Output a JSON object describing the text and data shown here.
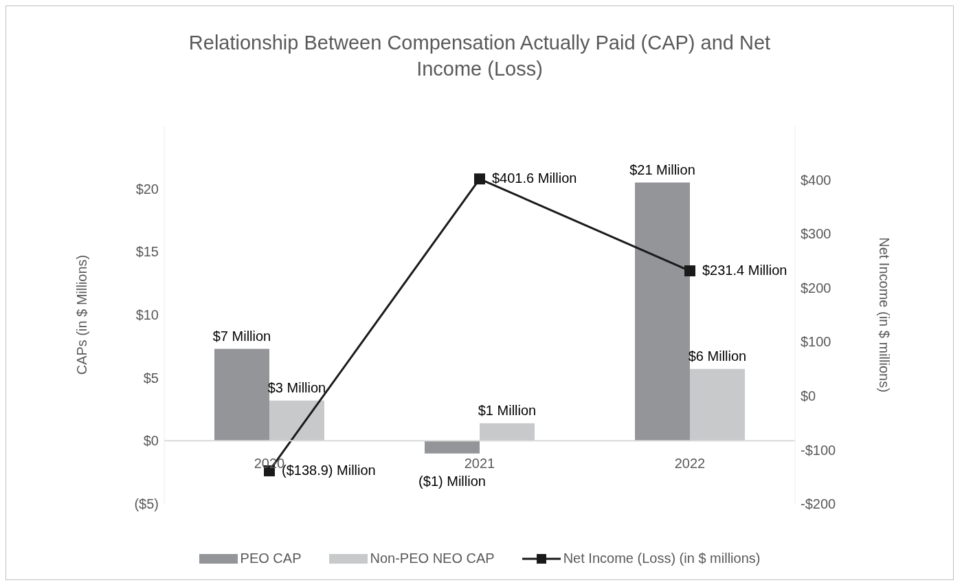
{
  "chart_data": {
    "type": "bar",
    "title": "Relationship Between Compensation Actually Paid (CAP) and Net Income (Loss)",
    "ylabel": "CAPs (in $ Millions)",
    "y2label": "Net Income (in $ millions)",
    "categories": [
      "2020",
      "2021",
      "2022"
    ],
    "series": [
      {
        "name": "PEO CAP",
        "color": "#939598",
        "values": [
          7.3,
          -1.0,
          20.5
        ],
        "value_labels": [
          "$7 Million",
          "($1) Million",
          "$21 Million"
        ]
      },
      {
        "name": "Non-PEO NEO CAP",
        "color": "#c8c9cb",
        "values": [
          3.2,
          1.4,
          5.7
        ],
        "value_labels": [
          "$3 Million",
          "$1 Million",
          "$6 Million"
        ]
      },
      {
        "name": "Net Income (Loss) (in $ millions)",
        "type": "line",
        "axis": "y2",
        "color": "#1a1a1a",
        "marker": "square",
        "line_style": "solid",
        "values": [
          -138.9,
          401.6,
          231.4
        ],
        "value_labels": [
          "($138.9) Million",
          "$401.6 Million",
          "$231.4 Million"
        ]
      }
    ],
    "ylim": [
      -5,
      25
    ],
    "yticks": [
      {
        "value": -5,
        "label": "($5)"
      },
      {
        "value": 0,
        "label": "$0"
      },
      {
        "value": 5,
        "label": "$5"
      },
      {
        "value": 10,
        "label": "$10"
      },
      {
        "value": 15,
        "label": "$15"
      },
      {
        "value": 20,
        "label": "$20"
      }
    ],
    "y2lim": [
      -200,
      500
    ],
    "y2ticks": [
      {
        "value": -200,
        "label": "-$200"
      },
      {
        "value": -100,
        "label": "-$100"
      },
      {
        "value": 0,
        "label": "$0"
      },
      {
        "value": 100,
        "label": "$100"
      },
      {
        "value": 200,
        "label": "$200"
      },
      {
        "value": 300,
        "label": "$300"
      },
      {
        "value": 400,
        "label": "$400"
      }
    ],
    "legend": "bottom"
  }
}
